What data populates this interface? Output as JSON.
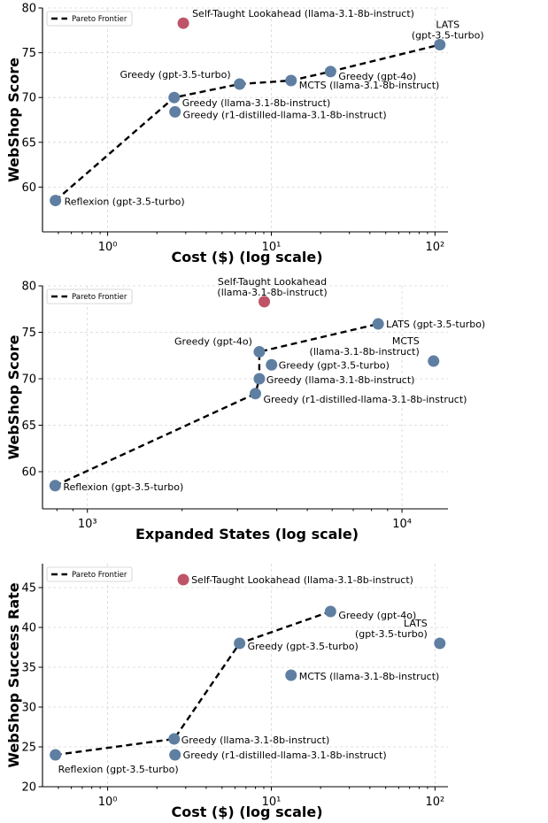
{
  "colors": {
    "default_point": "#5f7fa2",
    "highlight_point": "#be5468",
    "line": "#000000",
    "grid": "#d6d6d6"
  },
  "chart_data": [
    {
      "type": "scatter",
      "xlabel": "Cost ($) (log scale)",
      "ylabel": "WebShop Score",
      "xscale": "log",
      "xlim": [
        0.4,
        120
      ],
      "ylim": [
        55,
        80
      ],
      "xticks": [
        1,
        10,
        100
      ],
      "xtick_labels": [
        "10⁰",
        "10¹",
        "10²"
      ],
      "yticks": [
        60,
        65,
        70,
        75,
        80
      ],
      "grid": true,
      "legend": {
        "position": "top-left",
        "entries": [
          "Pareto Frontier"
        ]
      },
      "points": [
        {
          "label": "Self-Taught Lookahead (llama-3.1-8b-instruct)",
          "x": 2.9,
          "y": 78.3,
          "highlight": true
        },
        {
          "label": "LATS\n(gpt-3.5-turbo)",
          "x": 107,
          "y": 75.9
        },
        {
          "label": "Greedy (gpt-4o)",
          "x": 23,
          "y": 72.9
        },
        {
          "label": "MCTS (llama-3.1-8b-instruct)",
          "x": 13.2,
          "y": 71.9
        },
        {
          "label": "Greedy (gpt-3.5-turbo)",
          "x": 6.4,
          "y": 71.5
        },
        {
          "label": "Greedy (llama-3.1-8b-instruct)",
          "x": 2.55,
          "y": 70.0
        },
        {
          "label": "Greedy (r1-distilled-llama-3.1-8b-instruct)",
          "x": 2.58,
          "y": 68.4
        },
        {
          "label": "Reflexion (gpt-3.5-turbo)",
          "x": 0.48,
          "y": 58.5
        }
      ],
      "pareto_frontier": {
        "name": "Pareto Frontier",
        "x": [
          0.48,
          2.55,
          6.4,
          13.2,
          23,
          107
        ],
        "y": [
          58.5,
          70.0,
          71.5,
          71.9,
          72.9,
          75.9
        ]
      }
    },
    {
      "type": "scatter",
      "xlabel": "Expanded States (log scale)",
      "ylabel": "WebShop Score",
      "xscale": "log",
      "xlim": [
        720,
        14000
      ],
      "ylim": [
        56,
        80
      ],
      "xticks": [
        1000,
        10000
      ],
      "xtick_labels": [
        "10³",
        "10⁴"
      ],
      "yticks": [
        60,
        65,
        70,
        75,
        80
      ],
      "grid": true,
      "legend": {
        "position": "top-left",
        "entries": [
          "Pareto Frontier"
        ]
      },
      "points": [
        {
          "label": "Self-Taught Lookahead\n(llama-3.1-8b-instruct)",
          "x": 3650,
          "y": 78.3,
          "highlight": true
        },
        {
          "label": "LATS (gpt-3.5-turbo)",
          "x": 8400,
          "y": 75.9
        },
        {
          "label": "MCTS\n(llama-3.1-8b-instruct)",
          "x": 12600,
          "y": 71.9
        },
        {
          "label": "Greedy (gpt-4o)",
          "x": 3520,
          "y": 72.9
        },
        {
          "label": "Greedy (gpt-3.5-turbo)",
          "x": 3850,
          "y": 71.5
        },
        {
          "label": "Greedy (llama-3.1-8b-instruct)",
          "x": 3520,
          "y": 70.0
        },
        {
          "label": "Greedy (r1-distilled-llama-3.1-8b-instruct)",
          "x": 3420,
          "y": 68.4
        },
        {
          "label": "Reflexion (gpt-3.5-turbo)",
          "x": 790,
          "y": 58.5
        }
      ],
      "pareto_frontier": {
        "name": "Pareto Frontier",
        "x": [
          790,
          3420,
          3520,
          3520,
          8400
        ],
        "y": [
          58.5,
          68.4,
          70.0,
          72.9,
          75.9
        ]
      }
    },
    {
      "type": "scatter",
      "xlabel": "Cost ($) (log scale)",
      "ylabel": "WebShop Success Rate",
      "xscale": "log",
      "xlim": [
        0.4,
        120
      ],
      "ylim": [
        20,
        48
      ],
      "xticks": [
        1,
        10,
        100
      ],
      "xtick_labels": [
        "10⁰",
        "10¹",
        "10²"
      ],
      "yticks": [
        20,
        25,
        30,
        35,
        40,
        45
      ],
      "grid": true,
      "legend": {
        "position": "top-left",
        "entries": [
          "Pareto Frontier"
        ]
      },
      "points": [
        {
          "label": "Self-Taught Lookahead (llama-3.1-8b-instruct)",
          "x": 2.9,
          "y": 46,
          "highlight": true
        },
        {
          "label": "Greedy (gpt-4o)",
          "x": 23,
          "y": 42
        },
        {
          "label": "LATS\n(gpt-3.5-turbo)",
          "x": 107,
          "y": 38
        },
        {
          "label": "Greedy (gpt-3.5-turbo)",
          "x": 6.4,
          "y": 38
        },
        {
          "label": "MCTS (llama-3.1-8b-instruct)",
          "x": 13.2,
          "y": 34
        },
        {
          "label": "Greedy (llama-3.1-8b-instruct)",
          "x": 2.55,
          "y": 26
        },
        {
          "label": "Greedy (r1-distilled-llama-3.1-8b-instruct)",
          "x": 2.58,
          "y": 24
        },
        {
          "label": "Reflexion (gpt-3.5-turbo)",
          "x": 0.48,
          "y": 24
        }
      ],
      "pareto_frontier": {
        "name": "Pareto Frontier",
        "x": [
          0.48,
          2.55,
          6.4,
          23
        ],
        "y": [
          24,
          26,
          38,
          42
        ]
      }
    }
  ]
}
